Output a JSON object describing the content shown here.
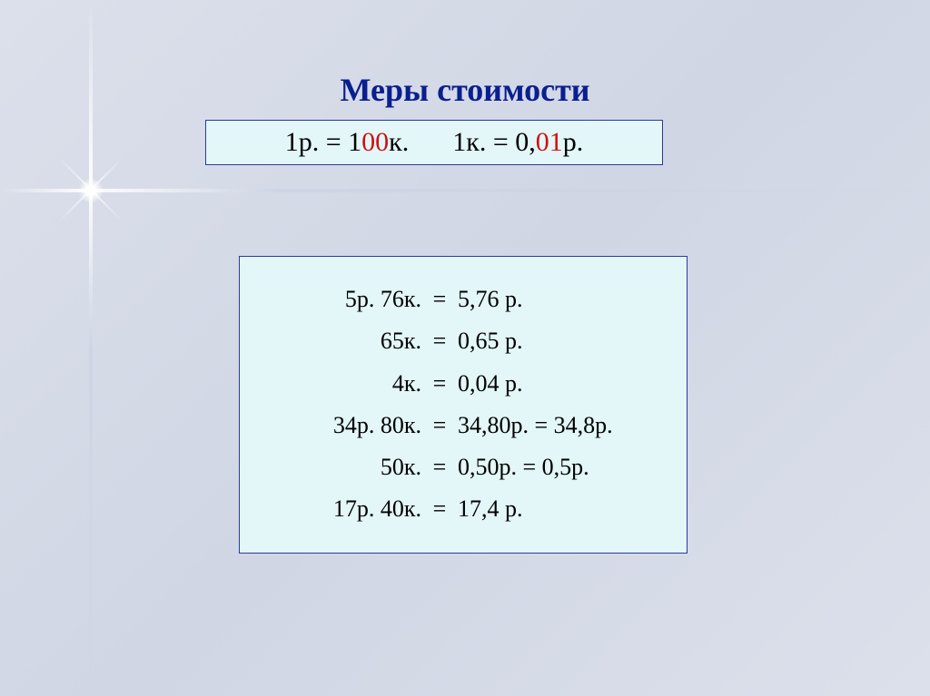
{
  "title": "Меры стоимости",
  "colors": {
    "title_color": "#0a1f8f",
    "box_bg": "#e3f6f8",
    "box_border": "#2a3a9a",
    "text_color": "#000000",
    "highlight_color": "#d01010",
    "page_bg_from": "#dce0eb",
    "page_bg_to": "#d0d6e4"
  },
  "typography": {
    "title_fontsize": 36,
    "title_weight": "bold",
    "body_fontsize_box1": 30,
    "body_fontsize_box2": 26,
    "font_family": "Times New Roman"
  },
  "rule_box": {
    "eq1": {
      "pre": "1р. = 1",
      "hl": "00",
      "post": "к."
    },
    "eq2": {
      "pre": "1к. = 0,",
      "hl": "01",
      "post": "р."
    }
  },
  "examples": [
    {
      "lhs": "5р. 76к.",
      "rhs": "5,76 р."
    },
    {
      "lhs": "65к.",
      "rhs": "0,65 р."
    },
    {
      "lhs": "4к.",
      "rhs": "0,04 р."
    },
    {
      "lhs": "34р. 80к.",
      "rhs": "34,80р. = 34,8р."
    },
    {
      "lhs": "50к.",
      "rhs": "0,50р. = 0,5р."
    },
    {
      "lhs": "17р. 40к.",
      "rhs": "17,4 р."
    }
  ],
  "eq_sign": "="
}
